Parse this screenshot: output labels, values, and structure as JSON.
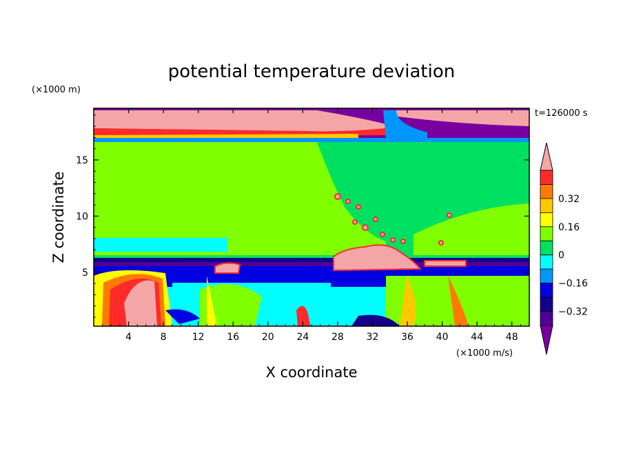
{
  "chart_data": {
    "type": "heatmap",
    "title": "potential temperature deviation",
    "xlabel": "X coordinate",
    "ylabel": "Z coordinate",
    "x_unit": "(×1000 m/s)",
    "y_unit": "(×1000 m)",
    "time_label": "t=126000 s",
    "xlim": [
      0,
      50
    ],
    "ylim": [
      0.2,
      19.6
    ],
    "x_ticks": [
      4,
      8,
      12,
      16,
      20,
      24,
      28,
      32,
      36,
      40,
      44,
      48
    ],
    "y_ticks": [
      5,
      10,
      15
    ],
    "colorbar": {
      "levels": [
        -0.48,
        -0.4,
        -0.32,
        -0.24,
        -0.16,
        -0.08,
        0,
        0.08,
        0.16,
        0.24,
        0.32,
        0.4,
        0.48
      ],
      "labeled_levels": [
        0.32,
        0.16,
        0,
        -0.16,
        -0.32
      ],
      "colors_top_to_bottom": [
        "#f4a6a6",
        "#ff2a2a",
        "#ff7a00",
        "#ffc800",
        "#ffff00",
        "#80ff00",
        "#00e060",
        "#00ffff",
        "#0096ff",
        "#0000e0",
        "#14008c",
        "#500096",
        "#7800a0"
      ]
    }
  }
}
